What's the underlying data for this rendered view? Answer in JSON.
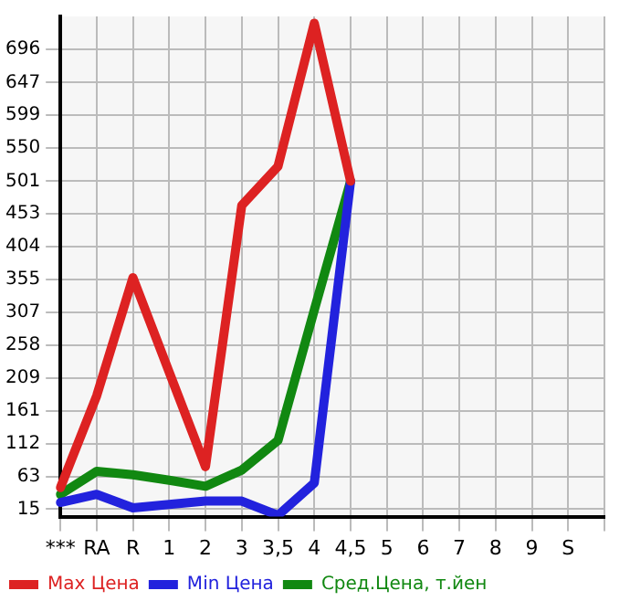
{
  "chart_data": {
    "type": "line",
    "categories": [
      "***",
      "RA",
      "R",
      "1",
      "2",
      "3",
      "3,5",
      "4",
      "4,5",
      "5",
      "6",
      "7",
      "8",
      "9",
      "S",
      null
    ],
    "series": [
      {
        "name": "Max Цена",
        "color": "#dd2222",
        "values": [
          47,
          183,
          358,
          218,
          78,
          465,
          523,
          735,
          501,
          null,
          null,
          null,
          null,
          null,
          null,
          null
        ]
      },
      {
        "name": "Min Цена",
        "color": "#2222dd",
        "values": [
          25,
          37,
          17,
          22,
          27,
          27,
          6,
          54,
          501,
          null,
          null,
          null,
          null,
          null,
          null,
          null
        ]
      },
      {
        "name": "Сред.Цена, т.йен",
        "color": "#118811",
        "values": [
          37,
          71,
          66,
          58,
          49,
          73,
          117,
          310,
          501,
          null,
          null,
          null,
          null,
          null,
          null,
          null
        ]
      }
    ],
    "ylim": [
      4,
      745
    ],
    "yticks": [
      15,
      63,
      112,
      161,
      209,
      258,
      307,
      355,
      404,
      453,
      501,
      550,
      599,
      647,
      696
    ],
    "grid": true,
    "legend": "bottom",
    "marker": "none",
    "line_style": "solid"
  }
}
